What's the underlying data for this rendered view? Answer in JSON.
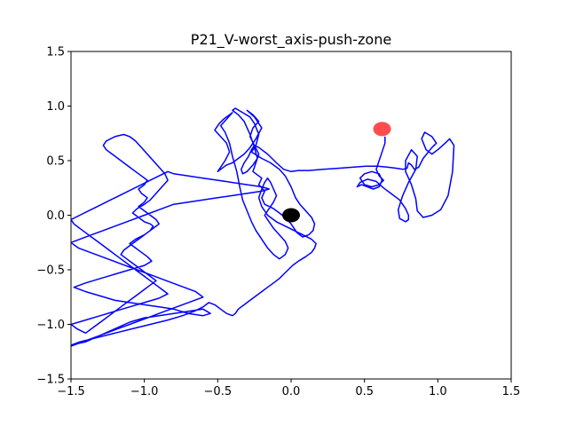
{
  "chart_data": {
    "type": "line",
    "title": "P21_V-worst_axis-push-zone",
    "xlabel": "",
    "ylabel": "",
    "xlim": [
      -1.5,
      1.5
    ],
    "ylim": [
      -1.5,
      1.5
    ],
    "xticks": [
      -1.5,
      -1.0,
      -0.5,
      0.0,
      0.5,
      1.0,
      1.5
    ],
    "xtick_labels": [
      "−1.5",
      "−1.0",
      "−0.5",
      "0.0",
      "0.5",
      "1.0",
      "1.5"
    ],
    "yticks": [
      -1.5,
      -1.0,
      -0.5,
      0.0,
      0.5,
      1.0,
      1.5
    ],
    "ytick_labels": [
      "−1.5",
      "−1.0",
      "−0.5",
      "0.0",
      "0.5",
      "1.0",
      "1.5"
    ],
    "grid": false,
    "legend": "none",
    "colors": {
      "path": "#0000ff",
      "start": "#000000",
      "target": "#ff0000"
    },
    "series": [
      {
        "x": [
          0.64,
          0.64,
          0.62,
          0.6,
          0.58,
          0.6,
          0.63,
          0.6,
          0.55,
          0.5,
          0.47,
          0.5,
          0.55,
          0.6,
          0.62,
          0.6,
          0.56,
          0.52,
          0.48,
          0.45,
          0.47,
          0.52,
          0.58,
          0.63,
          0.68,
          0.74,
          0.78,
          0.8,
          0.8,
          0.78,
          0.74,
          0.73,
          0.76,
          0.8,
          0.85,
          0.86,
          0.82,
          0.78,
          0.78,
          0.82,
          0.85,
          0.86,
          0.9,
          0.96,
          1.02,
          1.07,
          1.1,
          1.11,
          1.08,
          1.05,
          1.0,
          0.96,
          0.92,
          0.89,
          0.91,
          0.96,
          0.99,
          0.96,
          0.9,
          0.87,
          0.84,
          0.82,
          0.8,
          0.79,
          0.76,
          0.72,
          0.66,
          0.59,
          0.51,
          0.42,
          0.32,
          0.22,
          0.12,
          0.05,
          0.0,
          -0.05,
          -0.1,
          -0.16,
          -0.22,
          -0.25,
          -0.27,
          -0.29,
          -0.32,
          -0.34,
          -0.33,
          -0.3,
          -0.26,
          -0.23,
          -0.25,
          -0.28,
          -0.32,
          -0.36,
          -0.4,
          -0.38,
          -0.33,
          -0.28,
          -0.25,
          -0.22,
          -0.24,
          -0.27,
          -0.2,
          -0.14,
          -0.08,
          -0.04,
          0.0,
          0.03,
          0.06,
          0.1,
          0.14,
          0.16,
          0.15,
          0.12,
          0.08,
          0.04,
          0.0,
          -0.04,
          -0.08,
          -0.12,
          -0.18,
          -0.2,
          -0.18,
          -0.22,
          -0.2,
          -0.26,
          -0.24,
          -0.22,
          -0.25,
          -0.28,
          -0.26,
          -0.22,
          -0.26,
          -0.3,
          -0.25,
          -0.2,
          -0.24,
          -0.28,
          -0.32,
          -0.36,
          -0.4,
          -0.44,
          -0.48,
          -0.5,
          -0.48,
          -0.45,
          -0.42,
          -0.44,
          -0.48,
          -0.52,
          -0.49,
          -0.46,
          -0.42,
          -0.4,
          -0.44,
          -0.48,
          -0.45,
          -0.42,
          -0.4,
          -0.37,
          -0.35,
          -0.33,
          -0.3,
          -0.27,
          -0.24,
          -0.2,
          -0.16,
          -0.12,
          -0.08,
          -0.04,
          -0.02,
          -0.04,
          -0.08,
          -0.12,
          -0.15,
          -0.18,
          -0.15,
          -0.12,
          -0.1,
          -0.12,
          -0.14,
          -0.16,
          -0.18,
          -0.2,
          -0.22,
          -0.2,
          -0.16,
          -0.1,
          -0.04,
          0.02,
          0.08,
          0.14,
          0.17,
          0.16,
          0.14,
          0.1,
          0.05,
          0.01,
          -0.02,
          -0.05,
          -0.08,
          -0.12,
          -0.16,
          -0.2,
          -0.24,
          -0.28,
          -0.32,
          -0.36,
          -0.38,
          -0.4,
          -0.44,
          -0.48,
          -0.52,
          -0.56,
          -0.6,
          -0.66,
          -0.74,
          -0.84,
          -0.96,
          -1.08,
          -1.2,
          -1.32,
          -1.44,
          -1.5,
          -1.4,
          -1.3,
          -1.2,
          -1.1,
          -1.0,
          -0.9,
          -0.8,
          -0.7,
          -0.6,
          -0.55,
          -0.6,
          -0.7,
          -0.8,
          -0.9,
          -1.0,
          -1.1,
          -1.2,
          -1.3,
          -1.4,
          -1.48,
          -1.4,
          -1.3,
          -1.2,
          -1.1,
          -1.0,
          -0.95,
          -0.98,
          -1.02,
          -1.06,
          -1.1,
          -1.06,
          -1.0,
          -0.96,
          -0.94,
          -0.96,
          -1.0,
          -1.04,
          -1.08,
          -1.05,
          -1.0,
          -0.96,
          -0.92,
          -0.88,
          -0.84,
          -0.86,
          -0.9,
          -0.94,
          -0.98,
          -1.02,
          -1.06,
          -1.1,
          -1.14,
          -1.2,
          -1.26,
          -1.28,
          -1.26,
          -1.22,
          -1.18,
          -1.14,
          -1.1,
          -1.06,
          -1.02,
          -0.98,
          -1.0,
          -1.04,
          -1.02,
          -0.98,
          -1.0,
          -1.04,
          -1.0,
          -0.96,
          -0.92,
          -0.9,
          -0.94,
          -0.98,
          -1.02,
          -1.06,
          -1.1,
          -1.14,
          -1.16,
          -1.12,
          -1.08,
          -1.04,
          -1.0,
          -0.96,
          -0.92,
          -0.96,
          -1.0,
          -1.04,
          -1.08,
          -1.12,
          -1.16,
          -1.2,
          -1.24,
          -1.28,
          -1.32,
          -1.36,
          -1.4,
          -1.46,
          -1.5,
          -1.4,
          -1.3,
          -1.2,
          -1.1,
          -1.0,
          -0.9,
          -0.84,
          -0.88,
          -0.92,
          -0.96,
          -1.0,
          -1.04,
          -1.08,
          -1.12,
          -1.16,
          -1.2,
          -1.24,
          -1.28,
          -1.32,
          -1.36,
          -1.4,
          -1.44,
          -1.48,
          -1.5,
          -1.44,
          -1.38,
          -1.32,
          -1.26,
          -1.2,
          -1.14,
          -1.08,
          -1.02,
          -0.96,
          -0.9,
          -0.84,
          -0.8,
          -0.7,
          -0.6,
          -0.5,
          -0.4,
          -0.3,
          -0.2,
          -0.15,
          -0.2,
          -0.3,
          -0.4,
          -0.5,
          -0.6,
          -0.7,
          -0.8,
          -0.9,
          -1.0,
          -1.1,
          -1.2,
          -1.3,
          -1.4,
          -1.5,
          -1.45,
          -1.35,
          -1.25,
          -1.15,
          -1.05,
          -0.95,
          -0.85,
          -0.75,
          -0.65,
          -0.6,
          -0.7,
          -0.8,
          -0.9,
          -1.0,
          -1.1,
          -1.2,
          -1.3,
          -1.4,
          -1.5
        ],
        "y": [
          0.72,
          0.66,
          0.58,
          0.5,
          0.42,
          0.36,
          0.32,
          0.28,
          0.26,
          0.28,
          0.34,
          0.38,
          0.4,
          0.38,
          0.32,
          0.26,
          0.24,
          0.26,
          0.28,
          0.26,
          0.3,
          0.33,
          0.31,
          0.25,
          0.2,
          0.14,
          0.06,
          0.0,
          -0.04,
          -0.06,
          -0.03,
          0.05,
          0.18,
          0.3,
          0.42,
          0.54,
          0.6,
          0.5,
          0.4,
          0.28,
          0.15,
          0.04,
          -0.02,
          0.0,
          0.05,
          0.18,
          0.4,
          0.64,
          0.7,
          0.66,
          0.6,
          0.56,
          0.6,
          0.7,
          0.76,
          0.72,
          0.66,
          0.62,
          0.52,
          0.44,
          0.42,
          0.46,
          0.48,
          0.43,
          0.42,
          0.43,
          0.44,
          0.45,
          0.45,
          0.44,
          0.43,
          0.42,
          0.41,
          0.41,
          0.4,
          0.42,
          0.48,
          0.56,
          0.62,
          0.64,
          0.6,
          0.54,
          0.48,
          0.42,
          0.38,
          0.4,
          0.46,
          0.52,
          0.62,
          0.74,
          0.86,
          0.92,
          0.96,
          0.98,
          0.94,
          0.9,
          0.84,
          0.74,
          0.64,
          0.58,
          0.52,
          0.48,
          0.42,
          0.36,
          0.26,
          0.16,
          0.1,
          0.04,
          -0.02,
          -0.08,
          -0.14,
          -0.18,
          -0.2,
          -0.16,
          -0.08,
          -0.02,
          0.02,
          0.06,
          0.1,
          0.16,
          0.22,
          0.28,
          0.34,
          0.4,
          0.48,
          0.56,
          0.64,
          0.72,
          0.8,
          0.86,
          0.92,
          0.96,
          0.9,
          0.8,
          0.7,
          0.62,
          0.56,
          0.52,
          0.48,
          0.46,
          0.42,
          0.4,
          0.44,
          0.5,
          0.58,
          0.66,
          0.72,
          0.78,
          0.84,
          0.88,
          0.92,
          0.94,
          0.88,
          0.82,
          0.76,
          0.66,
          0.54,
          0.4,
          0.26,
          0.14,
          0.04,
          -0.06,
          -0.14,
          -0.22,
          -0.3,
          -0.36,
          -0.4,
          -0.36,
          -0.3,
          -0.24,
          -0.18,
          -0.12,
          -0.06,
          0.0,
          0.06,
          0.12,
          0.18,
          0.24,
          0.3,
          0.34,
          0.3,
          0.24,
          0.16,
          0.08,
          0.0,
          -0.06,
          -0.1,
          -0.14,
          -0.18,
          -0.22,
          -0.26,
          -0.3,
          -0.34,
          -0.38,
          -0.42,
          -0.46,
          -0.5,
          -0.54,
          -0.58,
          -0.62,
          -0.66,
          -0.7,
          -0.74,
          -0.78,
          -0.82,
          -0.86,
          -0.9,
          -0.92,
          -0.9,
          -0.86,
          -0.82,
          -0.8,
          -0.84,
          -0.88,
          -0.92,
          -0.96,
          -1.0,
          -1.04,
          -1.08,
          -1.12,
          -1.16,
          -1.19,
          -1.16,
          -1.1,
          -1.04,
          -0.98,
          -0.94,
          -0.92,
          -0.9,
          -0.88,
          -0.86,
          -0.9,
          -0.92,
          -0.9,
          -0.86,
          -0.84,
          -0.82,
          -0.8,
          -0.78,
          -0.74,
          -0.7,
          -0.66,
          -0.62,
          -0.58,
          -0.54,
          -0.5,
          -0.46,
          -0.42,
          -0.38,
          -0.34,
          -0.3,
          -0.26,
          -0.22,
          -0.18,
          -0.14,
          -0.1,
          -0.08,
          -0.06,
          -0.02,
          0.02,
          0.06,
          0.1,
          0.14,
          0.2,
          0.26,
          0.32,
          0.38,
          0.44,
          0.5,
          0.56,
          0.62,
          0.68,
          0.72,
          0.74,
          0.72,
          0.68,
          0.64,
          0.6,
          0.56,
          0.52,
          0.48,
          0.44,
          0.4,
          0.36,
          0.32,
          0.28,
          0.24,
          0.2,
          0.16,
          0.12,
          0.08,
          0.04,
          0.0,
          -0.04,
          -0.08,
          -0.12,
          -0.16,
          -0.2,
          -0.24,
          -0.28,
          -0.32,
          -0.36,
          -0.4,
          -0.44,
          -0.48,
          -0.52,
          -0.56,
          -0.6,
          -0.64,
          -0.68,
          -0.72,
          -0.76,
          -0.8,
          -0.84,
          -0.88,
          -0.92,
          -0.96,
          -1.0,
          -1.04,
          -1.08,
          -1.04,
          -1.0,
          -0.96,
          -0.92,
          -0.88,
          -0.84,
          -0.8,
          -0.76,
          -0.72,
          -0.68,
          -0.64,
          -0.6,
          -0.56,
          -0.52,
          -0.48,
          -0.44,
          -0.4,
          -0.36,
          -0.32,
          -0.28,
          -0.24,
          -0.2,
          -0.16,
          -0.12,
          -0.08,
          -0.04,
          0.0,
          0.04,
          0.08,
          0.12,
          0.16,
          0.2,
          0.24,
          0.28,
          0.32,
          0.36,
          0.4,
          0.38,
          0.36,
          0.34,
          0.32,
          0.3,
          0.28,
          0.26,
          0.24,
          0.22,
          0.2,
          0.18,
          0.16,
          0.14,
          0.12,
          0.1,
          0.05,
          0.0,
          -0.05,
          -0.1,
          -0.15,
          -0.2,
          -0.25,
          -0.3,
          -0.35,
          -0.4,
          -0.45,
          -0.5,
          -0.55,
          -0.6,
          -0.65,
          -0.7,
          -0.75,
          -0.8,
          -0.85,
          -0.9,
          -0.95,
          -1.0,
          -1.05,
          -1.1,
          -1.15,
          -1.2
        ]
      }
    ],
    "markers": [
      {
        "name": "start",
        "x": 0.0,
        "y": 0.0,
        "color": "#000000"
      },
      {
        "name": "target",
        "x": 0.62,
        "y": 0.79,
        "color": "#ff0000"
      }
    ]
  }
}
